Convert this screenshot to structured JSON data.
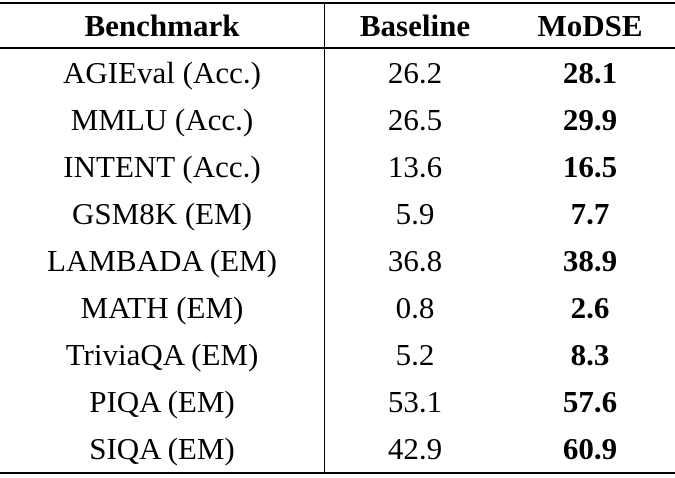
{
  "table": {
    "headers": {
      "benchmark": "Benchmark",
      "baseline": "Baseline",
      "modse": "MoDSE"
    },
    "rows": [
      {
        "benchmark": "AGIEval (Acc.)",
        "baseline": "26.2",
        "modse": "28.1"
      },
      {
        "benchmark": "MMLU (Acc.)",
        "baseline": "26.5",
        "modse": "29.9"
      },
      {
        "benchmark": "INTENT (Acc.)",
        "baseline": "13.6",
        "modse": "16.5"
      },
      {
        "benchmark": "GSM8K (EM)",
        "baseline": "5.9",
        "modse": "7.7"
      },
      {
        "benchmark": "LAMBADA (EM)",
        "baseline": "36.8",
        "modse": "38.9"
      },
      {
        "benchmark": "MATH (EM)",
        "baseline": "0.8",
        "modse": "2.6"
      },
      {
        "benchmark": "TriviaQA (EM)",
        "baseline": "5.2",
        "modse": "8.3"
      },
      {
        "benchmark": "PIQA (EM)",
        "baseline": "53.1",
        "modse": "57.6"
      },
      {
        "benchmark": "SIQA (EM)",
        "baseline": "42.9",
        "modse": "60.9"
      }
    ],
    "colors": {
      "text": "#000000",
      "background": "#ffffff",
      "rule": "#000000"
    }
  }
}
